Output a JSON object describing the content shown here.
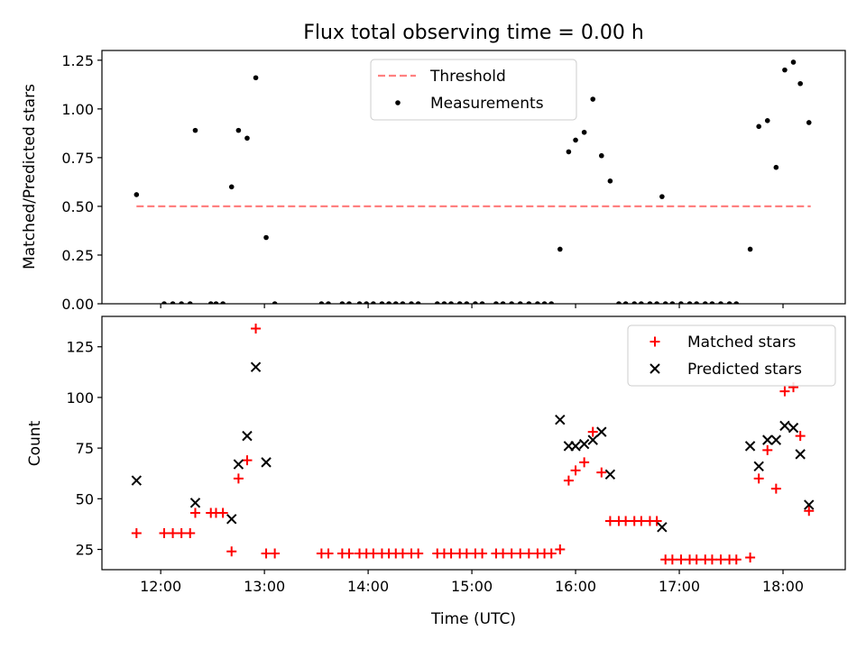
{
  "figure": {
    "title": "Flux total observing time = 0.00 h"
  },
  "chart_data": [
    {
      "type": "scatter",
      "panel": "top",
      "title": "Flux total observing time = 0.00 h",
      "xlabel": "",
      "ylabel": "Matched/Predicted stars",
      "xlim": [
        "11:26",
        "18:36"
      ],
      "ylim": [
        0,
        1.3
      ],
      "yticks": [
        0.0,
        0.25,
        0.5,
        0.75,
        1.0,
        1.25
      ],
      "ytick_labels": [
        "0.00",
        "0.25",
        "0.50",
        "0.75",
        "1.00",
        "1.25"
      ],
      "xticks": [
        "12:00",
        "13:00",
        "14:00",
        "15:00",
        "16:00",
        "17:00",
        "18:00"
      ],
      "show_xtick_labels": false,
      "grid": false,
      "legend_location": "upper center",
      "series": [
        {
          "name": "Threshold",
          "kind": "dashed-line",
          "color": "#ff8080",
          "points": [
            [
              "11:46",
              0.5
            ],
            [
              "18:16",
              0.5
            ]
          ]
        },
        {
          "name": "Measurements",
          "kind": "dot",
          "color": "#000000",
          "points": [
            [
              "11:46",
              0.56
            ],
            [
              "12:02",
              0.0
            ],
            [
              "12:07",
              0.0
            ],
            [
              "12:12",
              0.0
            ],
            [
              "12:17",
              0.0
            ],
            [
              "12:20",
              0.89
            ],
            [
              "12:29",
              0.0
            ],
            [
              "12:32",
              0.0
            ],
            [
              "12:36",
              0.0
            ],
            [
              "12:41",
              0.6
            ],
            [
              "12:45",
              0.89
            ],
            [
              "12:50",
              0.85
            ],
            [
              "12:55",
              1.16
            ],
            [
              "13:01",
              0.34
            ],
            [
              "13:06",
              0.0
            ],
            [
              "13:33",
              0.0
            ],
            [
              "13:37",
              0.0
            ],
            [
              "13:45",
              0.0
            ],
            [
              "13:49",
              0.0
            ],
            [
              "13:55",
              0.0
            ],
            [
              "13:59",
              0.0
            ],
            [
              "14:03",
              0.0
            ],
            [
              "14:08",
              0.0
            ],
            [
              "14:12",
              0.0
            ],
            [
              "14:16",
              0.0
            ],
            [
              "14:20",
              0.0
            ],
            [
              "14:25",
              0.0
            ],
            [
              "14:29",
              0.0
            ],
            [
              "14:40",
              0.0
            ],
            [
              "14:44",
              0.0
            ],
            [
              "14:48",
              0.0
            ],
            [
              "14:53",
              0.0
            ],
            [
              "14:57",
              0.0
            ],
            [
              "15:02",
              0.0
            ],
            [
              "15:06",
              0.0
            ],
            [
              "15:14",
              0.0
            ],
            [
              "15:18",
              0.0
            ],
            [
              "15:23",
              0.0
            ],
            [
              "15:28",
              0.0
            ],
            [
              "15:33",
              0.0
            ],
            [
              "15:38",
              0.0
            ],
            [
              "15:42",
              0.0
            ],
            [
              "15:46",
              0.0
            ],
            [
              "15:51",
              0.28
            ],
            [
              "15:56",
              0.78
            ],
            [
              "16:00",
              0.84
            ],
            [
              "16:05",
              0.88
            ],
            [
              "16:10",
              1.05
            ],
            [
              "16:15",
              0.76
            ],
            [
              "16:20",
              0.63
            ],
            [
              "16:25",
              0.0
            ],
            [
              "16:29",
              0.0
            ],
            [
              "16:34",
              0.0
            ],
            [
              "16:38",
              0.0
            ],
            [
              "16:43",
              0.0
            ],
            [
              "16:47",
              0.0
            ],
            [
              "16:50",
              0.55
            ],
            [
              "16:52",
              0.0
            ],
            [
              "16:56",
              0.0
            ],
            [
              "17:01",
              0.0
            ],
            [
              "17:06",
              0.0
            ],
            [
              "17:10",
              0.0
            ],
            [
              "17:15",
              0.0
            ],
            [
              "17:19",
              0.0
            ],
            [
              "17:24",
              0.0
            ],
            [
              "17:29",
              0.0
            ],
            [
              "17:33",
              0.0
            ],
            [
              "17:41",
              0.28
            ],
            [
              "17:46",
              0.91
            ],
            [
              "17:51",
              0.94
            ],
            [
              "17:56",
              0.7
            ],
            [
              "18:01",
              1.2
            ],
            [
              "18:06",
              1.24
            ],
            [
              "18:10",
              1.13
            ],
            [
              "18:15",
              0.93
            ]
          ]
        }
      ]
    },
    {
      "type": "scatter",
      "panel": "bottom",
      "title": "",
      "xlabel": "Time (UTC)",
      "ylabel": "Count",
      "xlim": [
        "11:26",
        "18:36"
      ],
      "ylim": [
        15,
        140
      ],
      "yticks": [
        25,
        50,
        75,
        100,
        125
      ],
      "ytick_labels": [
        "25",
        "50",
        "75",
        "100",
        "125"
      ],
      "xticks": [
        "12:00",
        "13:00",
        "14:00",
        "15:00",
        "16:00",
        "17:00",
        "18:00"
      ],
      "xtick_labels": [
        "12:00",
        "13:00",
        "14:00",
        "15:00",
        "16:00",
        "17:00",
        "18:00"
      ],
      "grid": false,
      "legend_location": "upper right",
      "series": [
        {
          "name": "Matched stars",
          "kind": "plus",
          "color": "#ff0000",
          "points": [
            [
              "11:46",
              33
            ],
            [
              "12:02",
              33
            ],
            [
              "12:07",
              33
            ],
            [
              "12:12",
              33
            ],
            [
              "12:17",
              33
            ],
            [
              "12:20",
              43
            ],
            [
              "12:29",
              43
            ],
            [
              "12:32",
              43
            ],
            [
              "12:36",
              43
            ],
            [
              "12:41",
              24
            ],
            [
              "12:45",
              60
            ],
            [
              "12:50",
              69
            ],
            [
              "12:55",
              134
            ],
            [
              "13:01",
              23
            ],
            [
              "13:06",
              23
            ],
            [
              "13:33",
              23
            ],
            [
              "13:37",
              23
            ],
            [
              "13:45",
              23
            ],
            [
              "13:49",
              23
            ],
            [
              "13:55",
              23
            ],
            [
              "13:59",
              23
            ],
            [
              "14:03",
              23
            ],
            [
              "14:08",
              23
            ],
            [
              "14:12",
              23
            ],
            [
              "14:16",
              23
            ],
            [
              "14:20",
              23
            ],
            [
              "14:25",
              23
            ],
            [
              "14:29",
              23
            ],
            [
              "14:40",
              23
            ],
            [
              "14:44",
              23
            ],
            [
              "14:48",
              23
            ],
            [
              "14:53",
              23
            ],
            [
              "14:57",
              23
            ],
            [
              "15:02",
              23
            ],
            [
              "15:06",
              23
            ],
            [
              "15:14",
              23
            ],
            [
              "15:18",
              23
            ],
            [
              "15:23",
              23
            ],
            [
              "15:28",
              23
            ],
            [
              "15:33",
              23
            ],
            [
              "15:38",
              23
            ],
            [
              "15:42",
              23
            ],
            [
              "15:46",
              23
            ],
            [
              "15:51",
              25
            ],
            [
              "15:56",
              59
            ],
            [
              "16:00",
              64
            ],
            [
              "16:05",
              68
            ],
            [
              "16:10",
              83
            ],
            [
              "16:15",
              63
            ],
            [
              "16:20",
              39
            ],
            [
              "16:25",
              39
            ],
            [
              "16:29",
              39
            ],
            [
              "16:34",
              39
            ],
            [
              "16:38",
              39
            ],
            [
              "16:43",
              39
            ],
            [
              "16:47",
              39
            ],
            [
              "16:52",
              20
            ],
            [
              "16:56",
              20
            ],
            [
              "17:01",
              20
            ],
            [
              "17:06",
              20
            ],
            [
              "17:10",
              20
            ],
            [
              "17:15",
              20
            ],
            [
              "17:19",
              20
            ],
            [
              "17:24",
              20
            ],
            [
              "17:29",
              20
            ],
            [
              "17:33",
              20
            ],
            [
              "17:41",
              21
            ],
            [
              "17:46",
              60
            ],
            [
              "17:51",
              74
            ],
            [
              "17:56",
              55
            ],
            [
              "18:01",
              103
            ],
            [
              "18:06",
              105
            ],
            [
              "18:10",
              81
            ],
            [
              "18:15",
              44
            ]
          ]
        },
        {
          "name": "Predicted stars",
          "kind": "x",
          "color": "#000000",
          "points": [
            [
              "11:46",
              59
            ],
            [
              "12:20",
              48
            ],
            [
              "12:41",
              40
            ],
            [
              "12:45",
              67
            ],
            [
              "12:50",
              81
            ],
            [
              "12:55",
              115
            ],
            [
              "13:01",
              68
            ],
            [
              "15:51",
              89
            ],
            [
              "15:56",
              76
            ],
            [
              "16:00",
              76
            ],
            [
              "16:05",
              77
            ],
            [
              "16:10",
              79
            ],
            [
              "16:15",
              83
            ],
            [
              "16:20",
              62
            ],
            [
              "16:50",
              36
            ],
            [
              "17:41",
              76
            ],
            [
              "17:46",
              66
            ],
            [
              "17:51",
              79
            ],
            [
              "17:56",
              79
            ],
            [
              "18:01",
              86
            ],
            [
              "18:06",
              85
            ],
            [
              "18:10",
              72
            ],
            [
              "18:15",
              47
            ]
          ]
        }
      ]
    }
  ]
}
